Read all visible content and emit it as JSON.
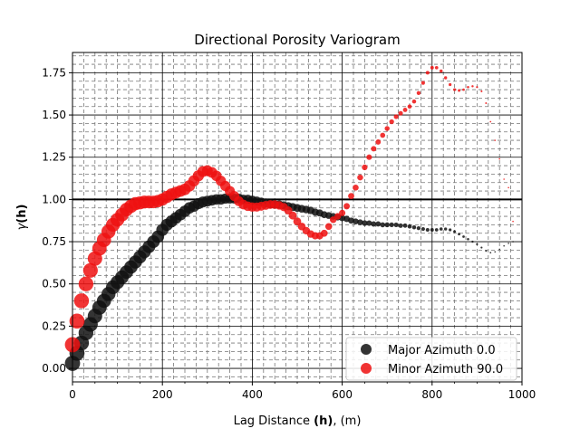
{
  "chart_data": {
    "type": "scatter",
    "title": "Directional Porosity Variogram",
    "xlabel_main": "Lag Distance ",
    "xlabel_bold": "(h)",
    "xlabel_unit": ", (m)",
    "ylabel_gamma": "γ",
    "ylabel_h": "(h)",
    "xlim": [
      0,
      1000
    ],
    "ylim": [
      -0.08,
      1.87
    ],
    "x_ticks": [
      "0",
      "200",
      "400",
      "600",
      "800",
      "1000"
    ],
    "y_ticks": [
      "0.00",
      "0.25",
      "0.50",
      "0.75",
      "1.00",
      "1.25",
      "1.50",
      "1.75"
    ],
    "grid": "on",
    "legend_position": "lower-right",
    "sill": 1.0,
    "series": [
      {
        "name": "Major Azimuth 0.0",
        "color": "#111111",
        "points": [
          [
            0,
            0.03
          ],
          [
            10,
            0.09
          ],
          [
            20,
            0.15
          ],
          [
            30,
            0.21
          ],
          [
            40,
            0.26
          ],
          [
            50,
            0.31
          ],
          [
            60,
            0.36
          ],
          [
            70,
            0.4
          ],
          [
            80,
            0.44
          ],
          [
            90,
            0.48
          ],
          [
            100,
            0.51
          ],
          [
            110,
            0.54
          ],
          [
            120,
            0.57
          ],
          [
            130,
            0.6
          ],
          [
            140,
            0.63
          ],
          [
            150,
            0.66
          ],
          [
            160,
            0.69
          ],
          [
            170,
            0.72
          ],
          [
            180,
            0.75
          ],
          [
            190,
            0.78
          ],
          [
            200,
            0.82
          ],
          [
            210,
            0.85
          ],
          [
            220,
            0.87
          ],
          [
            230,
            0.89
          ],
          [
            240,
            0.91
          ],
          [
            250,
            0.93
          ],
          [
            260,
            0.95
          ],
          [
            270,
            0.96
          ],
          [
            280,
            0.975
          ],
          [
            290,
            0.985
          ],
          [
            300,
            0.99
          ],
          [
            310,
            0.995
          ],
          [
            320,
            1.0
          ],
          [
            330,
            1.0
          ],
          [
            340,
            1.005
          ],
          [
            350,
            1.005
          ],
          [
            360,
            1.005
          ],
          [
            370,
            1.005
          ],
          [
            380,
            1.0
          ],
          [
            390,
            1.0
          ],
          [
            400,
            0.995
          ],
          [
            410,
            0.99
          ],
          [
            420,
            0.985
          ],
          [
            430,
            0.98
          ],
          [
            440,
            0.975
          ],
          [
            450,
            0.97
          ],
          [
            460,
            0.97
          ],
          [
            470,
            0.965
          ],
          [
            480,
            0.96
          ],
          [
            490,
            0.955
          ],
          [
            500,
            0.95
          ],
          [
            510,
            0.945
          ],
          [
            520,
            0.94
          ],
          [
            530,
            0.935
          ],
          [
            540,
            0.925
          ],
          [
            550,
            0.92
          ],
          [
            560,
            0.91
          ],
          [
            570,
            0.905
          ],
          [
            580,
            0.9
          ],
          [
            590,
            0.895
          ],
          [
            600,
            0.89
          ],
          [
            610,
            0.885
          ],
          [
            620,
            0.875
          ],
          [
            630,
            0.87
          ],
          [
            640,
            0.865
          ],
          [
            650,
            0.86
          ],
          [
            660,
            0.86
          ],
          [
            670,
            0.855
          ],
          [
            680,
            0.855
          ],
          [
            690,
            0.85
          ],
          [
            700,
            0.85
          ],
          [
            710,
            0.85
          ],
          [
            720,
            0.85
          ],
          [
            730,
            0.845
          ],
          [
            740,
            0.845
          ],
          [
            750,
            0.84
          ],
          [
            760,
            0.835
          ],
          [
            770,
            0.83
          ],
          [
            780,
            0.825
          ],
          [
            790,
            0.82
          ],
          [
            800,
            0.82
          ],
          [
            810,
            0.82
          ],
          [
            820,
            0.825
          ],
          [
            830,
            0.825
          ],
          [
            840,
            0.82
          ],
          [
            850,
            0.81
          ],
          [
            860,
            0.795
          ],
          [
            870,
            0.78
          ],
          [
            880,
            0.765
          ],
          [
            890,
            0.75
          ],
          [
            900,
            0.735
          ],
          [
            910,
            0.715
          ],
          [
            920,
            0.695
          ],
          [
            930,
            0.685
          ],
          [
            940,
            0.69
          ],
          [
            950,
            0.705
          ],
          [
            960,
            0.725
          ],
          [
            970,
            0.74
          ],
          [
            980,
            0.75
          ]
        ]
      },
      {
        "name": "Minor Azimuth 90.0",
        "color": "#ee1111",
        "points": [
          [
            0,
            0.14
          ],
          [
            10,
            0.28
          ],
          [
            20,
            0.4
          ],
          [
            30,
            0.5
          ],
          [
            40,
            0.58
          ],
          [
            50,
            0.65
          ],
          [
            60,
            0.71
          ],
          [
            70,
            0.76
          ],
          [
            80,
            0.81
          ],
          [
            90,
            0.85
          ],
          [
            100,
            0.88
          ],
          [
            110,
            0.91
          ],
          [
            120,
            0.94
          ],
          [
            130,
            0.96
          ],
          [
            140,
            0.975
          ],
          [
            150,
            0.98
          ],
          [
            160,
            0.985
          ],
          [
            170,
            0.985
          ],
          [
            180,
            0.985
          ],
          [
            190,
            0.99
          ],
          [
            200,
            1.0
          ],
          [
            210,
            1.015
          ],
          [
            220,
            1.03
          ],
          [
            230,
            1.04
          ],
          [
            240,
            1.05
          ],
          [
            250,
            1.06
          ],
          [
            260,
            1.08
          ],
          [
            270,
            1.11
          ],
          [
            280,
            1.14
          ],
          [
            290,
            1.165
          ],
          [
            300,
            1.17
          ],
          [
            310,
            1.16
          ],
          [
            320,
            1.14
          ],
          [
            330,
            1.11
          ],
          [
            340,
            1.08
          ],
          [
            350,
            1.05
          ],
          [
            360,
            1.02
          ],
          [
            370,
            0.99
          ],
          [
            380,
            0.97
          ],
          [
            390,
            0.96
          ],
          [
            400,
            0.955
          ],
          [
            410,
            0.955
          ],
          [
            420,
            0.96
          ],
          [
            430,
            0.965
          ],
          [
            440,
            0.97
          ],
          [
            450,
            0.97
          ],
          [
            460,
            0.965
          ],
          [
            470,
            0.955
          ],
          [
            480,
            0.935
          ],
          [
            490,
            0.905
          ],
          [
            500,
            0.87
          ],
          [
            510,
            0.84
          ],
          [
            520,
            0.815
          ],
          [
            530,
            0.795
          ],
          [
            540,
            0.785
          ],
          [
            550,
            0.785
          ],
          [
            560,
            0.8
          ],
          [
            570,
            0.84
          ],
          [
            580,
            0.88
          ],
          [
            590,
            0.9
          ],
          [
            600,
            0.92
          ],
          [
            610,
            0.96
          ],
          [
            620,
            1.02
          ],
          [
            630,
            1.07
          ],
          [
            640,
            1.13
          ],
          [
            650,
            1.19
          ],
          [
            660,
            1.25
          ],
          [
            670,
            1.3
          ],
          [
            680,
            1.34
          ],
          [
            690,
            1.38
          ],
          [
            700,
            1.42
          ],
          [
            710,
            1.46
          ],
          [
            720,
            1.49
          ],
          [
            730,
            1.51
          ],
          [
            740,
            1.53
          ],
          [
            750,
            1.55
          ],
          [
            760,
            1.58
          ],
          [
            770,
            1.63
          ],
          [
            780,
            1.69
          ],
          [
            790,
            1.75
          ],
          [
            800,
            1.78
          ],
          [
            810,
            1.78
          ],
          [
            820,
            1.76
          ],
          [
            830,
            1.72
          ],
          [
            840,
            1.68
          ],
          [
            850,
            1.65
          ],
          [
            860,
            1.645
          ],
          [
            870,
            1.65
          ],
          [
            880,
            1.665
          ],
          [
            890,
            1.67
          ],
          [
            900,
            1.665
          ],
          [
            910,
            1.64
          ],
          [
            920,
            1.57
          ],
          [
            930,
            1.46
          ],
          [
            940,
            1.35
          ],
          [
            950,
            1.24
          ],
          [
            960,
            1.12
          ],
          [
            970,
            1.07
          ],
          [
            980,
            0.87
          ]
        ]
      }
    ]
  }
}
